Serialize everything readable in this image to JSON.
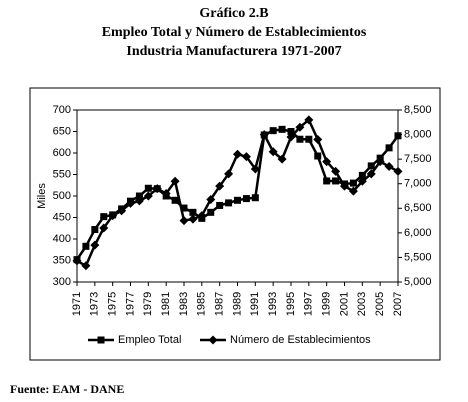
{
  "chart_data": {
    "type": "line",
    "title": "Gráfico 2.B",
    "subtitle": [
      "Empleo Total y Número de Establecimientos",
      "Industria Manufacturera 1971-2007"
    ],
    "source": "Fuente: EAM - DANE",
    "ylabel": "Miles",
    "x": [
      1971,
      1972,
      1973,
      1974,
      1975,
      1976,
      1977,
      1978,
      1979,
      1980,
      1981,
      1982,
      1983,
      1984,
      1985,
      1986,
      1987,
      1988,
      1989,
      1990,
      1991,
      1992,
      1993,
      1994,
      1995,
      1996,
      1997,
      1998,
      1999,
      2000,
      2001,
      2002,
      2003,
      2004,
      2005,
      2006,
      2007
    ],
    "xlim": [
      1971,
      2007
    ],
    "xticks": [
      1971,
      1973,
      1975,
      1977,
      1979,
      1981,
      1983,
      1985,
      1987,
      1989,
      1991,
      1993,
      1995,
      1997,
      1999,
      2001,
      2003,
      2005,
      2007
    ],
    "ylim": [
      300,
      700
    ],
    "yticks": [
      300,
      350,
      400,
      450,
      500,
      550,
      600,
      650,
      700
    ],
    "y2lim": [
      5000,
      8500
    ],
    "y2ticks": [
      {
        "value": 5000,
        "label": "5,000"
      },
      {
        "value": 5500,
        "label": "5,500"
      },
      {
        "value": 6000,
        "label": "6,000"
      },
      {
        "value": 6500,
        "label": "6,500"
      },
      {
        "value": 7000,
        "label": "7,000"
      },
      {
        "value": 7500,
        "label": "7,500"
      },
      {
        "value": 8000,
        "label": "8,000"
      },
      {
        "value": 8500,
        "label": "8,500"
      }
    ],
    "grid": false,
    "legend": "bottom",
    "series": [
      {
        "name": "Empleo Total",
        "color": "#000000",
        "marker": "square",
        "values": [
          352,
          383,
          422,
          452,
          456,
          470,
          488,
          500,
          518,
          517,
          500,
          490,
          472,
          462,
          448,
          462,
          478,
          484,
          490,
          494,
          496,
          642,
          652,
          655,
          650,
          632,
          632,
          593,
          535,
          535,
          528,
          530,
          548,
          570,
          588,
          612,
          640
        ]
      },
      {
        "name": "Número de Establecimientos",
        "color": "#000000",
        "marker": "diamond",
        "axis": "y2",
        "values": [
          5430,
          5330,
          5750,
          6100,
          6350,
          6450,
          6600,
          6650,
          6750,
          6900,
          6800,
          7050,
          6250,
          6280,
          6350,
          6680,
          6950,
          7200,
          7600,
          7550,
          7300,
          8000,
          7650,
          7500,
          7950,
          8150,
          8300,
          7900,
          7450,
          7250,
          6950,
          6850,
          7050,
          7200,
          7450,
          7350,
          7250
        ]
      }
    ]
  }
}
